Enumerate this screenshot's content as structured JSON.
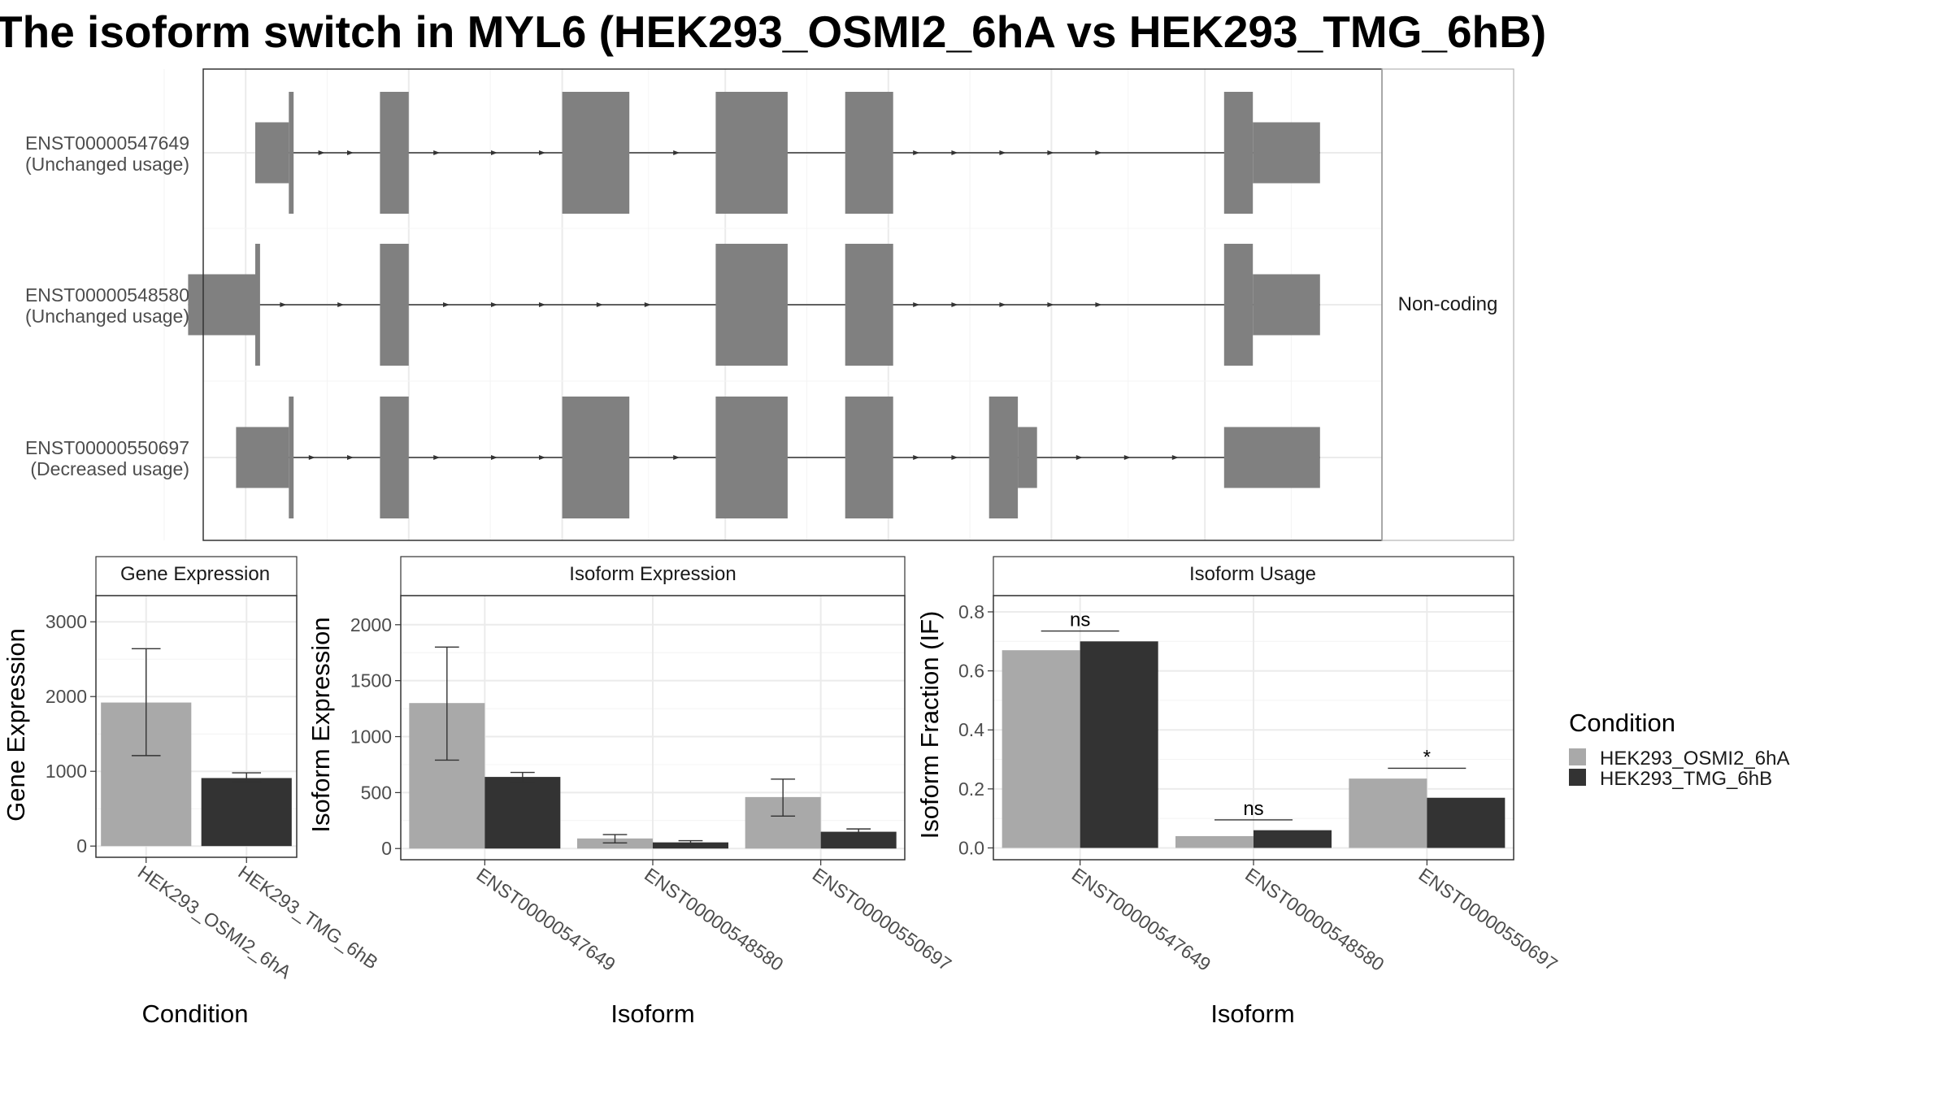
{
  "title": "The isoform switch in MYL6 (HEK293_OSMI2_6hA vs HEK293_TMG_6hB)",
  "colors": {
    "cond1": "#a9a9a9",
    "cond2": "#333333",
    "exon": "#808080",
    "grid": "#ebebeb",
    "panel_border": "#333333",
    "strip_border": "#333333"
  },
  "structure": {
    "strip_label": "Non-coding",
    "transcripts": [
      {
        "id": "ENST00000547649",
        "usage": "(Unchanged usage)",
        "blocks": [
          [
            1.0,
            4.5,
            "utr"
          ],
          [
            4.5,
            5.0,
            "cds"
          ],
          [
            14.0,
            17.0,
            "cds"
          ],
          [
            33.0,
            40.0,
            "cds"
          ],
          [
            49.0,
            56.5,
            "cds"
          ],
          [
            62.5,
            67.5,
            "cds"
          ],
          [
            102.0,
            105.0,
            "cds"
          ],
          [
            105.0,
            112.0,
            "utr"
          ]
        ],
        "arrows": [
          8,
          11,
          20,
          26,
          31,
          45,
          70,
          74,
          79,
          84,
          89
        ]
      },
      {
        "id": "ENST00000548580",
        "usage": "(Unchanged usage)",
        "blocks": [
          [
            -6.0,
            1.0,
            "utr"
          ],
          [
            1.0,
            1.5,
            "cds"
          ],
          [
            14.0,
            17.0,
            "cds"
          ],
          [
            49.0,
            56.5,
            "cds"
          ],
          [
            62.5,
            67.5,
            "cds"
          ],
          [
            102.0,
            105.0,
            "cds"
          ],
          [
            105.0,
            112.0,
            "utr"
          ]
        ],
        "arrows": [
          4,
          10,
          21,
          26,
          31,
          37,
          42,
          70,
          74,
          79,
          84,
          89
        ]
      },
      {
        "id": "ENST00000550697",
        "usage": "(Decreased usage)",
        "blocks": [
          [
            -1.0,
            4.5,
            "utr"
          ],
          [
            4.5,
            5.0,
            "cds"
          ],
          [
            14.0,
            17.0,
            "cds"
          ],
          [
            33.0,
            40.0,
            "cds"
          ],
          [
            49.0,
            56.5,
            "cds"
          ],
          [
            62.5,
            67.5,
            "cds"
          ],
          [
            77.5,
            80.5,
            "cds"
          ],
          [
            80.5,
            82.5,
            "utr"
          ],
          [
            102.0,
            112.0,
            "utr"
          ]
        ],
        "arrows": [
          7,
          11,
          20,
          26,
          31,
          45,
          70,
          74,
          87,
          92,
          97
        ]
      }
    ]
  },
  "legend": {
    "title": "Condition",
    "items": [
      "HEK293_OSMI2_6hA",
      "HEK293_TMG_6hB"
    ]
  },
  "chart_data": [
    {
      "type": "bar",
      "title": "Gene Expression",
      "xlabel": "Condition",
      "ylabel": "Gene Expression",
      "categories": [
        "HEK293_OSMI2_6hA",
        "HEK293_TMG_6hB"
      ],
      "series": [
        {
          "name": "HEK293_OSMI2_6hA",
          "values": [
            1920,
            null
          ],
          "err_low": [
            1210,
            null
          ],
          "err_high": [
            2640,
            null
          ]
        },
        {
          "name": "HEK293_TMG_6hB",
          "values": [
            null,
            910
          ],
          "err_low": [
            null,
            860
          ],
          "err_high": [
            null,
            980
          ]
        }
      ],
      "ylim": [
        -150,
        3350
      ],
      "yticks": [
        0,
        1000,
        2000,
        3000
      ],
      "ytick_labels": [
        "0",
        "1000",
        "2000",
        "3000"
      ]
    },
    {
      "type": "bar",
      "title": "Isoform Expression",
      "xlabel": "Isoform",
      "ylabel": "Isoform Expression",
      "categories": [
        "ENST00000547649",
        "ENST00000548580",
        "ENST00000550697"
      ],
      "series": [
        {
          "name": "HEK293_OSMI2_6hA",
          "values": [
            1300,
            90,
            460
          ],
          "err_low": [
            790,
            50,
            290
          ],
          "err_high": [
            1800,
            125,
            620
          ]
        },
        {
          "name": "HEK293_TMG_6hB",
          "values": [
            640,
            55,
            150
          ],
          "err_low": [
            590,
            40,
            130
          ],
          "err_high": [
            680,
            70,
            175
          ]
        }
      ],
      "ylim": [
        -100,
        2260
      ],
      "yticks": [
        0,
        500,
        1000,
        1500,
        2000
      ],
      "ytick_labels": [
        "0",
        "500",
        "1000",
        "1500",
        "2000"
      ]
    },
    {
      "type": "bar",
      "title": "Isoform Usage",
      "xlabel": "Isoform",
      "ylabel": "Isoform Fraction (IF)",
      "categories": [
        "ENST00000547649",
        "ENST00000548580",
        "ENST00000550697"
      ],
      "series": [
        {
          "name": "HEK293_OSMI2_6hA",
          "values": [
            0.67,
            0.04,
            0.235
          ]
        },
        {
          "name": "HEK293_TMG_6hB",
          "values": [
            0.7,
            0.06,
            0.17
          ]
        }
      ],
      "significance": [
        "ns",
        "ns",
        "*"
      ],
      "significance_y": [
        0.735,
        0.095,
        0.27
      ],
      "ylim": [
        -0.04,
        0.855
      ],
      "yticks": [
        0.0,
        0.2,
        0.4,
        0.6,
        0.8
      ],
      "ytick_labels": [
        "0.0",
        "0.2",
        "0.4",
        "0.6",
        "0.8"
      ]
    }
  ]
}
